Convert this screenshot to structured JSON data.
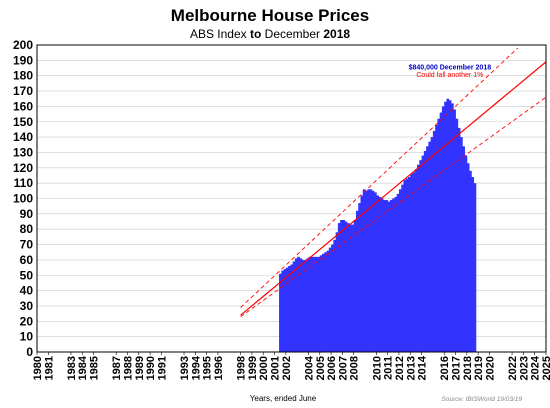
{
  "chart_data": {
    "type": "area",
    "title": "Melbourne House Prices",
    "subtitle_parts": [
      {
        "text": "ABS Index ",
        "bold": false
      },
      {
        "text": "to",
        "bold": true
      },
      {
        "text": " December ",
        "bold": false
      },
      {
        "text": "2018",
        "bold": true
      }
    ],
    "xlabel": "Years, ended June",
    "source": "Source: IBISWorld  19/03/19",
    "xlim": [
      1980,
      2025
    ],
    "ylim": [
      0,
      200
    ],
    "ytick_step": 10,
    "xticks": [
      1980,
      1981,
      1983,
      1984,
      1985,
      1987,
      1988,
      1989,
      1990,
      1991,
      1993,
      1994,
      1995,
      1996,
      1998,
      1999,
      2000,
      2001,
      2002,
      2004,
      2005,
      2006,
      2007,
      2008,
      2010,
      2011,
      2012,
      2013,
      2014,
      2016,
      2017,
      2018,
      2019,
      2020,
      2022,
      2023,
      2024,
      2025
    ],
    "annotation": {
      "line1": "$840,000 December 2018",
      "line2": "Could fall another 1%",
      "color1": "#0000cc",
      "color2": "#ff0000",
      "x": 2016.5,
      "y1": 184,
      "y2": 179
    },
    "colors": {
      "bars": "#3333ff",
      "trend": "#ff0000",
      "grid": "#cccccc",
      "text": "#000000",
      "source": "#888888"
    },
    "series": [
      {
        "kind": "bars",
        "x": [
          2001.4,
          2001.6,
          2001.8,
          2002.0,
          2002.2,
          2002.4,
          2002.6,
          2002.8,
          2003.0,
          2003.2,
          2003.4,
          2003.6,
          2003.8,
          2004.0,
          2004.2,
          2004.4,
          2004.6,
          2004.8,
          2005.0,
          2005.2,
          2005.4,
          2005.6,
          2005.8,
          2006.0,
          2006.2,
          2006.4,
          2006.6,
          2006.8,
          2007.0,
          2007.2,
          2007.4,
          2007.6,
          2007.8,
          2008.0,
          2008.2,
          2008.4,
          2008.6,
          2008.8,
          2009.0,
          2009.2,
          2009.4,
          2009.6,
          2009.8,
          2010.0,
          2010.2,
          2010.4,
          2010.6,
          2010.8,
          2011.0,
          2011.2,
          2011.4,
          2011.6,
          2011.8,
          2012.0,
          2012.2,
          2012.4,
          2012.6,
          2012.8,
          2013.0,
          2013.2,
          2013.4,
          2013.6,
          2013.8,
          2014.0,
          2014.2,
          2014.4,
          2014.6,
          2014.8,
          2015.0,
          2015.2,
          2015.4,
          2015.6,
          2015.8,
          2016.0,
          2016.2,
          2016.4,
          2016.6,
          2016.8,
          2017.0,
          2017.2,
          2017.4,
          2017.6,
          2017.8,
          2018.0,
          2018.2,
          2018.4,
          2018.6
        ],
        "values": [
          51,
          53,
          54,
          55,
          56,
          57,
          59,
          61,
          62,
          61,
          60,
          60,
          61,
          62,
          62,
          62,
          62,
          62,
          63,
          64,
          65,
          66,
          68,
          70,
          73,
          78,
          84,
          86,
          86,
          85,
          84,
          83,
          83,
          86,
          92,
          97,
          102,
          106,
          105,
          106,
          106,
          105,
          104,
          102,
          101,
          100,
          99,
          99,
          98,
          99,
          100,
          101,
          103,
          106,
          109,
          112,
          113,
          114,
          116,
          117,
          119,
          122,
          125,
          128,
          131,
          134,
          137,
          140,
          144,
          148,
          152,
          156,
          160,
          163,
          165,
          164,
          162,
          158,
          152,
          146,
          140,
          134,
          128,
          123,
          118,
          114,
          110
        ]
      },
      {
        "kind": "trend",
        "style": "solid",
        "x": [
          1998.0,
          2025.0
        ],
        "values": [
          24.0,
          189.0
        ]
      },
      {
        "kind": "trend",
        "style": "dashed",
        "x": [
          1998.0,
          2022.5
        ],
        "values": [
          29.0,
          198.0
        ]
      },
      {
        "kind": "trend",
        "style": "dashed",
        "x": [
          1998.0,
          2025.0
        ],
        "values": [
          23.0,
          166.0
        ]
      }
    ]
  }
}
